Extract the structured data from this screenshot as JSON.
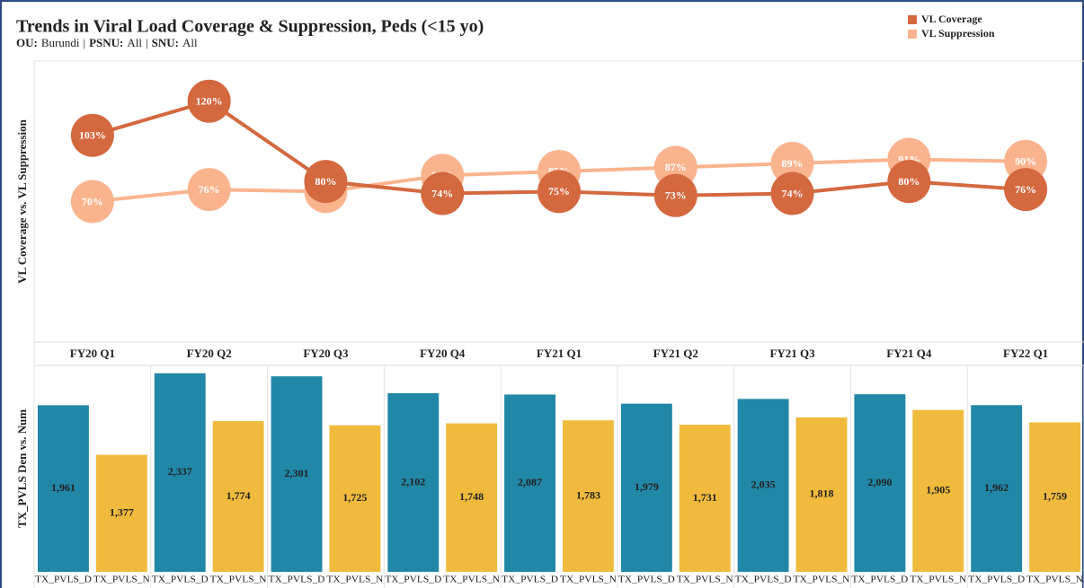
{
  "chart_data": [
    {
      "type": "line",
      "title": "Trends in Viral Load Coverage & Suppression, Peds (<15 yo)",
      "filters": [
        {
          "name": "OU:",
          "value": "Burundi"
        },
        {
          "name": "PSNU:",
          "value": "All"
        },
        {
          "name": "SNU:",
          "value": "All"
        }
      ],
      "separator": "|",
      "ylabel": "VL Coverage vs. VL Suppression",
      "categories": [
        "FY20 Q1",
        "FY20 Q2",
        "FY20 Q3",
        "FY20 Q4",
        "FY21 Q1",
        "FY21 Q2",
        "FY21 Q3",
        "FY21 Q4",
        "FY22 Q1"
      ],
      "ylim": [
        0,
        140
      ],
      "legend": "top-right",
      "series": [
        {
          "name": "VL Coverage",
          "color": "#d4683f",
          "values": [
            103,
            120,
            80,
            74,
            75,
            73,
            74,
            80,
            76
          ],
          "value_labels": [
            "103%",
            "120%",
            "80%",
            "74%",
            "75%",
            "73%",
            "74%",
            "80%",
            "76%"
          ]
        },
        {
          "name": "VL Suppression",
          "color": "#f9b48e",
          "values": [
            70,
            76,
            75,
            83,
            85,
            87,
            89,
            91,
            90
          ],
          "value_labels": [
            "70%",
            "76%",
            "75%",
            "83%",
            "85%",
            "87%",
            "89%",
            "91%",
            "90%"
          ]
        }
      ]
    },
    {
      "type": "bar",
      "ylabel": "TX_PVLS Den vs. Num",
      "ylim": [
        0,
        2430
      ],
      "series": [
        {
          "name": "TX_PVLS_D",
          "color": "#2187a7",
          "values": [
            1961,
            2337,
            2301,
            2102,
            2087,
            1979,
            2035,
            2090,
            1962
          ],
          "value_labels": [
            "1,961",
            "2,337",
            "2,301",
            "2,102",
            "2,087",
            "1,979",
            "2,035",
            "2,090",
            "1,962"
          ]
        },
        {
          "name": "TX_PVLS_N",
          "color": "#f0ba3c",
          "values": [
            1377,
            1774,
            1725,
            1748,
            1783,
            1731,
            1818,
            1905,
            1759
          ],
          "value_labels": [
            "1,377",
            "1,774",
            "1,725",
            "1,748",
            "1,783",
            "1,731",
            "1,818",
            "1,905",
            "1,759"
          ]
        }
      ]
    }
  ]
}
